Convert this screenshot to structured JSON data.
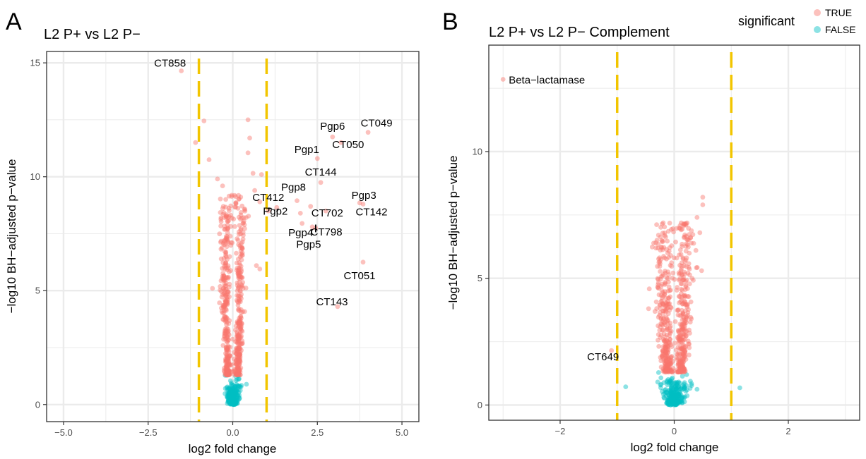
{
  "panels": [
    {
      "letter": "A"
    },
    {
      "letter": "B"
    }
  ],
  "legend": {
    "title": "significant",
    "items": [
      {
        "label": "TRUE",
        "color": "#F8766D"
      },
      {
        "label": "FALSE",
        "color": "#00BFC4"
      }
    ]
  },
  "colors": {
    "significant": "#F8766D",
    "not_significant": "#00BFC4",
    "threshold_line": "#F2C500",
    "grid": "#EBEBEB",
    "panel_border": "#333333"
  },
  "chart_data": [
    {
      "type": "scatter",
      "title": "L2 P+ vs L2 P−",
      "xlabel": "log2 fold change",
      "ylabel": "−log10 BH−adjusted p−value",
      "xlim": [
        -5.5,
        5.5
      ],
      "ylim": [
        -0.75,
        15.5
      ],
      "xticks": [
        -5,
        -2.5,
        0,
        2.5,
        5
      ],
      "xtick_labels": [
        "−5.0",
        "−2.5",
        "0.0",
        "2.5",
        "5.0"
      ],
      "yticks": [
        0,
        5,
        10,
        15
      ],
      "ytick_labels": [
        "0",
        "5",
        "10",
        "15"
      ],
      "grid": true,
      "threshold_lines_x": [
        -1,
        1
      ],
      "labeled_points": [
        {
          "label": "CT858",
          "x": -1.52,
          "y": 14.65
        },
        {
          "label": "Pgp6",
          "x": 2.95,
          "y": 11.75
        },
        {
          "label": "CT049",
          "x": 4.0,
          "y": 11.95
        },
        {
          "label": "Pgp1",
          "x": 2.5,
          "y": 10.8
        },
        {
          "label": "CT050",
          "x": 3.2,
          "y": 11.5
        },
        {
          "label": "CT144",
          "x": 2.6,
          "y": 9.75
        },
        {
          "label": "CT412",
          "x": 1.05,
          "y": 8.5
        },
        {
          "label": "Pgp8",
          "x": 1.9,
          "y": 8.95
        },
        {
          "label": "Pgp2",
          "x": 1.3,
          "y": 8.65
        },
        {
          "label": "CT702",
          "x": 2.75,
          "y": 8.5
        },
        {
          "label": "Pgp3",
          "x": 3.75,
          "y": 8.85
        },
        {
          "label": "CT142",
          "x": 3.85,
          "y": 8.8
        },
        {
          "label": "Pgp4",
          "x": 2.05,
          "y": 7.95
        },
        {
          "label": "CT798",
          "x": 2.35,
          "y": 7.8
        },
        {
          "label": "Pgp5",
          "x": 2.45,
          "y": 7.75
        },
        {
          "label": "CT051",
          "x": 3.85,
          "y": 6.25
        },
        {
          "label": "CT143",
          "x": 3.1,
          "y": 4.3
        }
      ],
      "extra_significant_points": [
        {
          "x": -0.85,
          "y": 12.45
        },
        {
          "x": -1.1,
          "y": 11.5
        },
        {
          "x": -0.7,
          "y": 10.75
        },
        {
          "x": -0.45,
          "y": 9.9
        },
        {
          "x": -0.3,
          "y": 9.6
        },
        {
          "x": 0.45,
          "y": 12.5
        },
        {
          "x": 0.5,
          "y": 11.7
        },
        {
          "x": 0.45,
          "y": 11.05
        },
        {
          "x": 0.6,
          "y": 10.15
        },
        {
          "x": 0.85,
          "y": 10.1
        },
        {
          "x": 0.65,
          "y": 9.4
        },
        {
          "x": 0.8,
          "y": 8.9
        },
        {
          "x": 0.35,
          "y": 8.55
        },
        {
          "x": 2.0,
          "y": 8.4
        },
        {
          "x": 2.3,
          "y": 8.7
        },
        {
          "x": 0.3,
          "y": 7.95
        },
        {
          "x": 0.7,
          "y": 6.1
        },
        {
          "x": 0.8,
          "y": 5.95
        },
        {
          "x": -0.6,
          "y": 5.1
        }
      ],
      "cluster": {
        "neg_center": -0.22,
        "pos_center": 0.22,
        "sig_threshold_y": 1.3,
        "max_y": 9.2
      }
    },
    {
      "type": "scatter",
      "title": "L2 P+ vs L2 P− Complement",
      "xlabel": "log2 fold change",
      "ylabel": "−log10 BH−adjusted p−value",
      "xlim": [
        -3.25,
        3.25
      ],
      "ylim": [
        -0.6,
        14.2
      ],
      "xticks": [
        -2,
        0,
        2
      ],
      "xtick_labels": [
        "−2",
        "0",
        "2"
      ],
      "yticks": [
        0,
        5,
        10
      ],
      "ytick_labels": [
        "0",
        "5",
        "10"
      ],
      "grid": true,
      "threshold_lines_x": [
        -1,
        1
      ],
      "labeled_points": [
        {
          "label": "Beta−lactamase",
          "x": -3.0,
          "y": 12.85
        },
        {
          "label": "CT649",
          "x": -1.1,
          "y": 2.15
        }
      ],
      "extra_significant_points": [
        {
          "x": 0.5,
          "y": 8.2
        },
        {
          "x": 0.5,
          "y": 7.9
        },
        {
          "x": 0.4,
          "y": 7.4
        },
        {
          "x": 0.45,
          "y": 6.8
        },
        {
          "x": 0.38,
          "y": 6.1
        },
        {
          "x": 0.48,
          "y": 5.3
        },
        {
          "x": -0.45,
          "y": 3.8
        },
        {
          "x": 0.3,
          "y": 3.4
        }
      ],
      "extra_nonsig_points": [
        {
          "x": -0.85,
          "y": 0.72
        },
        {
          "x": 1.15,
          "y": 0.68
        },
        {
          "x": 0.4,
          "y": 0.62
        }
      ],
      "cluster": {
        "neg_center": -0.18,
        "pos_center": 0.18,
        "sig_threshold_y": 1.3,
        "max_y": 7.2
      }
    }
  ]
}
